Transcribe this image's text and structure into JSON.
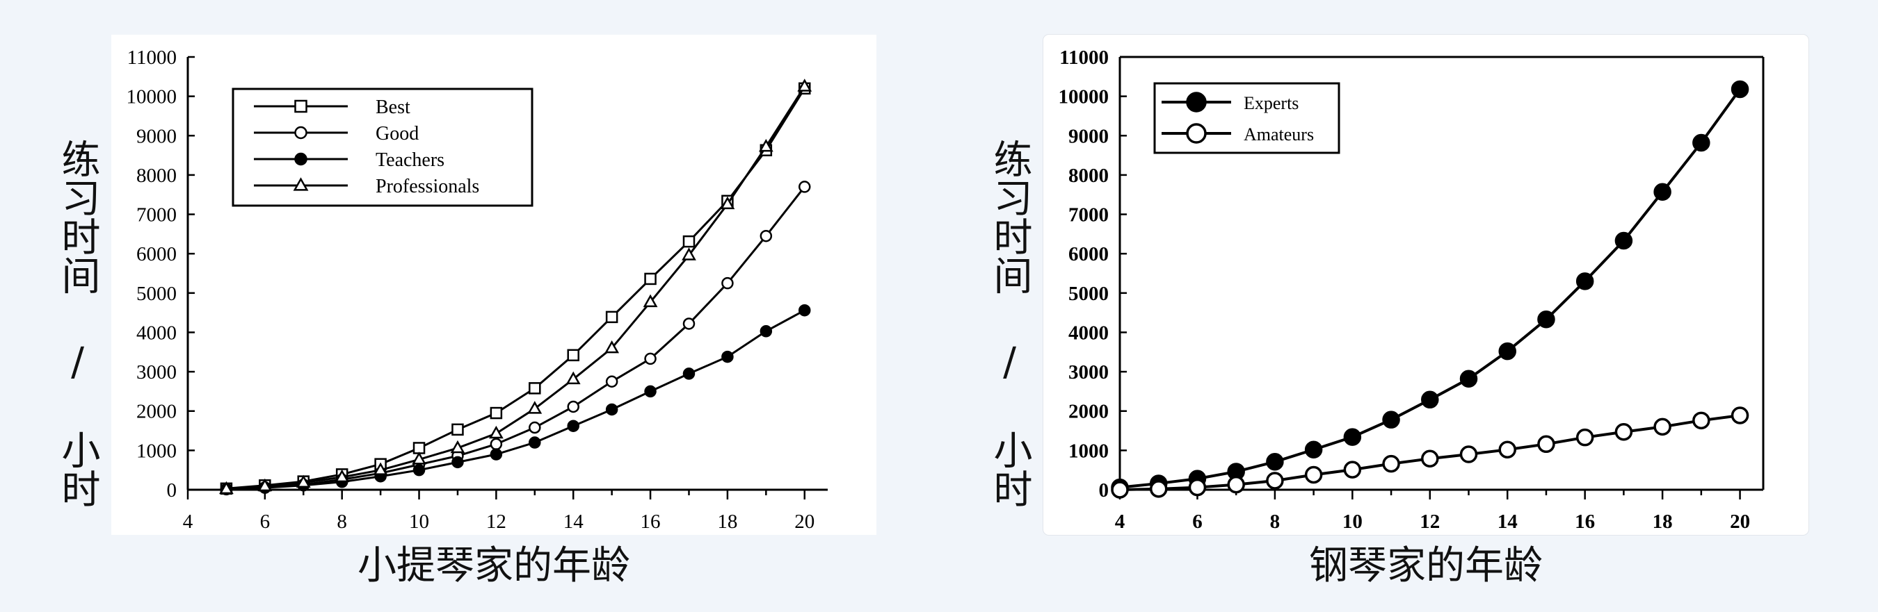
{
  "chart_data": [
    {
      "type": "line",
      "ylabel": "练习时间 / 小时",
      "xlabel": "小提琴家的年龄",
      "xlim": [
        4,
        20.6
      ],
      "ylim": [
        0,
        11000
      ],
      "xticks": [
        4,
        6,
        8,
        10,
        12,
        14,
        16,
        18,
        20
      ],
      "yticks": [
        0,
        1000,
        2000,
        3000,
        4000,
        5000,
        6000,
        7000,
        8000,
        9000,
        10000,
        11000
      ],
      "legend": "top-left",
      "grid": false,
      "series": [
        {
          "name": "Best",
          "marker": "square",
          "x": [
            5,
            6,
            7,
            8,
            9,
            10,
            11,
            12,
            13,
            14,
            15,
            16,
            17,
            18,
            19,
            20
          ],
          "values": [
            30,
            110,
            210,
            390,
            650,
            1060,
            1530,
            1950,
            2580,
            3420,
            4390,
            5360,
            6310,
            7340,
            8630,
            10200
          ]
        },
        {
          "name": "Good",
          "marker": "circle-open",
          "x": [
            5,
            6,
            7,
            8,
            9,
            10,
            11,
            12,
            13,
            14,
            15,
            16,
            17,
            18,
            19,
            20
          ],
          "values": [
            20,
            60,
            130,
            260,
            420,
            640,
            860,
            1160,
            1580,
            2110,
            2750,
            3330,
            4220,
            5250,
            6450,
            7700
          ]
        },
        {
          "name": "Teachers",
          "marker": "circle-filled",
          "x": [
            5,
            6,
            7,
            8,
            9,
            10,
            11,
            12,
            13,
            14,
            15,
            16,
            17,
            18,
            19,
            20
          ],
          "values": [
            10,
            50,
            110,
            200,
            340,
            500,
            700,
            900,
            1200,
            1620,
            2040,
            2500,
            2950,
            3380,
            4030,
            4560
          ]
        },
        {
          "name": "Professionals",
          "marker": "triangle",
          "x": [
            5,
            6,
            7,
            8,
            9,
            10,
            11,
            12,
            13,
            14,
            15,
            16,
            17,
            18,
            19,
            20
          ],
          "values": [
            20,
            90,
            180,
            320,
            500,
            770,
            1060,
            1430,
            2060,
            2810,
            3600,
            4770,
            5960,
            7260,
            8720,
            10250
          ]
        }
      ]
    },
    {
      "type": "line",
      "ylabel": "练习时间 / 小时",
      "xlabel": "钢琴家的年龄",
      "xlim": [
        4,
        20.6
      ],
      "ylim": [
        0,
        11000
      ],
      "xticks": [
        4,
        6,
        8,
        10,
        12,
        14,
        16,
        18,
        20
      ],
      "yticks": [
        0,
        1000,
        2000,
        3000,
        4000,
        5000,
        6000,
        7000,
        8000,
        9000,
        10000,
        11000
      ],
      "legend": "top-left",
      "grid": false,
      "series": [
        {
          "name": "Experts",
          "marker": "circle-filled",
          "x": [
            4,
            5,
            6,
            7,
            8,
            9,
            10,
            11,
            12,
            13,
            14,
            15,
            16,
            17,
            18,
            19,
            20
          ],
          "values": [
            60,
            160,
            280,
            460,
            710,
            1020,
            1340,
            1780,
            2290,
            2820,
            3520,
            4330,
            5300,
            6330,
            7570,
            8820,
            10180
          ]
        },
        {
          "name": "Amateurs",
          "marker": "circle-open",
          "x": [
            4,
            5,
            6,
            7,
            8,
            9,
            10,
            11,
            12,
            13,
            14,
            15,
            16,
            17,
            18,
            19,
            20
          ],
          "values": [
            0,
            20,
            60,
            130,
            230,
            380,
            510,
            660,
            790,
            900,
            1020,
            1160,
            1330,
            1470,
            1600,
            1760,
            1890
          ]
        }
      ]
    }
  ]
}
